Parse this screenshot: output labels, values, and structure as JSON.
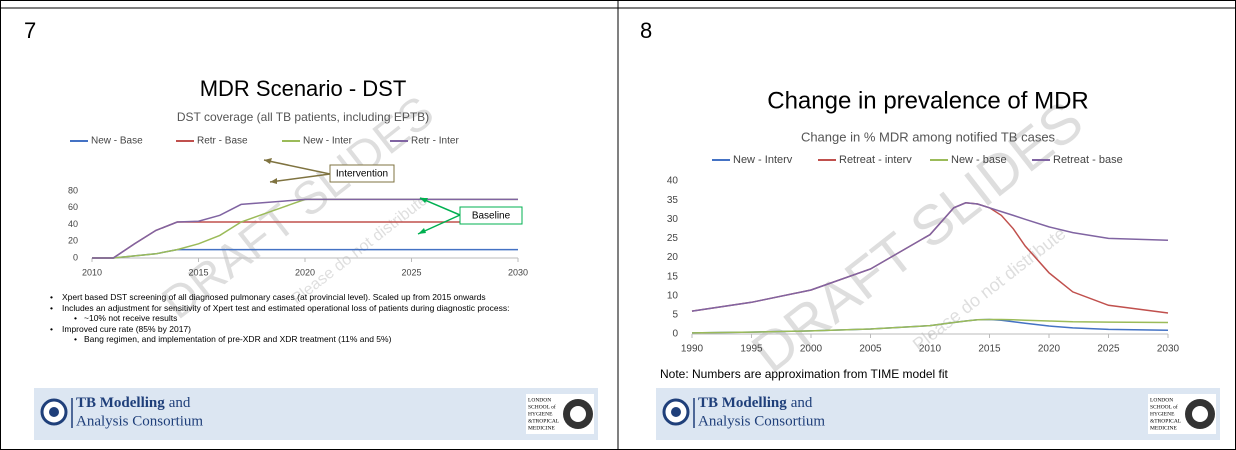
{
  "chart_data": [
    {
      "type": "line",
      "title": "MDR Scenario - DST",
      "subtitle": "DST coverage (all TB patients, including EPTB)",
      "x": [
        2010,
        2011,
        2012,
        2013,
        2014,
        2015,
        2016,
        2017,
        2018,
        2019,
        2020,
        2021,
        2022,
        2023,
        2024,
        2025,
        2026,
        2027,
        2028,
        2029,
        2030
      ],
      "series": [
        {
          "name": "New - Base",
          "color": "#4472c4",
          "values": [
            0,
            0,
            2.5,
            5,
            10,
            10,
            10,
            10,
            10,
            10,
            10,
            10,
            10,
            10,
            10,
            10,
            10,
            10,
            10,
            10,
            10
          ]
        },
        {
          "name": "Retr - Base",
          "color": "#c0504d",
          "values": [
            0,
            0,
            17,
            33,
            43,
            43,
            43,
            43,
            43,
            43,
            43,
            43,
            43,
            43,
            43,
            43,
            43,
            43,
            43,
            43,
            43
          ]
        },
        {
          "name": "New - Inter",
          "color": "#9bbb59",
          "values": [
            0,
            0,
            2.5,
            5,
            10,
            17,
            27,
            43,
            52,
            61,
            70,
            70,
            70,
            70,
            70,
            70,
            70,
            70,
            70,
            70,
            70
          ]
        },
        {
          "name": "Retr - Inter",
          "color": "#8064a2",
          "values": [
            0,
            0,
            17,
            33,
            43,
            44,
            51,
            64,
            66,
            68,
            70,
            70,
            70,
            70,
            70,
            70,
            70,
            70,
            70,
            70,
            70
          ]
        }
      ],
      "xlim": [
        2010,
        2030
      ],
      "xticks": [
        2010,
        2015,
        2020,
        2025,
        2030
      ],
      "ylim": [
        0,
        80
      ],
      "yticks": [
        0,
        20,
        40,
        60,
        80
      ],
      "grid": false,
      "legend": "top",
      "annotations": [
        "Intervention",
        "Baseline"
      ]
    },
    {
      "type": "line",
      "title": "Change in prevalence of MDR",
      "subtitle": "Change in % MDR among notified TB cases",
      "x": [
        1990,
        1995,
        2000,
        2005,
        2010,
        2012,
        2013,
        2014,
        2015,
        2016,
        2017,
        2018,
        2020,
        2022,
        2025,
        2030
      ],
      "series": [
        {
          "name": "New - Interv",
          "color": "#4472c4",
          "values": [
            0.3,
            0.5,
            0.8,
            1.3,
            2.2,
            3,
            3.4,
            3.7,
            3.8,
            3.6,
            3.2,
            2.8,
            2.1,
            1.6,
            1.2,
            1
          ]
        },
        {
          "name": "Retreat - interv",
          "color": "#c0504d",
          "values": [
            6,
            8.3,
            11.5,
            17,
            26,
            33,
            34.3,
            34,
            33,
            31,
            27.5,
            23,
            16,
            11,
            7.5,
            5.5
          ]
        },
        {
          "name": "New - base",
          "color": "#9bbb59",
          "values": [
            0.3,
            0.5,
            0.8,
            1.3,
            2.2,
            3,
            3.4,
            3.7,
            3.8,
            3.8,
            3.7,
            3.6,
            3.4,
            3.2,
            3.1,
            3
          ]
        },
        {
          "name": "Retreat - base",
          "color": "#8064a2",
          "values": [
            6,
            8.3,
            11.5,
            17,
            26,
            33,
            34.3,
            34,
            33,
            32,
            31,
            30,
            28,
            26.5,
            25,
            24.5
          ]
        }
      ],
      "xlim": [
        1990,
        2030
      ],
      "xticks": [
        1990,
        1995,
        2000,
        2005,
        2010,
        2015,
        2020,
        2025,
        2030
      ],
      "ylim": [
        0,
        40
      ],
      "yticks": [
        0,
        5,
        10,
        15,
        20,
        25,
        30,
        35,
        40
      ],
      "grid": false,
      "legend": "top"
    }
  ],
  "slides": [
    {
      "number": "7",
      "bullets": [
        {
          "level": 1,
          "text": "Xpert based DST screening of all diagnosed pulmonary cases (at provincial level). Scaled up from 2015 onwards"
        },
        {
          "level": 1,
          "text": "Includes an adjustment for sensitivity of Xpert test and estimated operational loss of patients during diagnostic process:"
        },
        {
          "level": 2,
          "text": "~10% not receive results"
        },
        {
          "level": 1,
          "text": "Improved cure rate (85% by 2017)"
        },
        {
          "level": 2,
          "text": "Bang regimen, and implementation of pre-XDR and XDR treatment (11% and 5%)"
        }
      ]
    },
    {
      "number": "8",
      "note": "Note: Numbers are approximation from TIME model fit"
    }
  ],
  "watermark": {
    "main": "DRAFT SLIDES",
    "sub": "Please do not distribute"
  },
  "footer": {
    "tmac_bold": "TB Modelling",
    "tmac_and": "and",
    "tmac_line2": "Analysis Consortium",
    "lshtm": [
      "LONDON",
      "SCHOOL of",
      "HYGIENE",
      "&TROPICAL",
      "MEDICINE"
    ]
  }
}
